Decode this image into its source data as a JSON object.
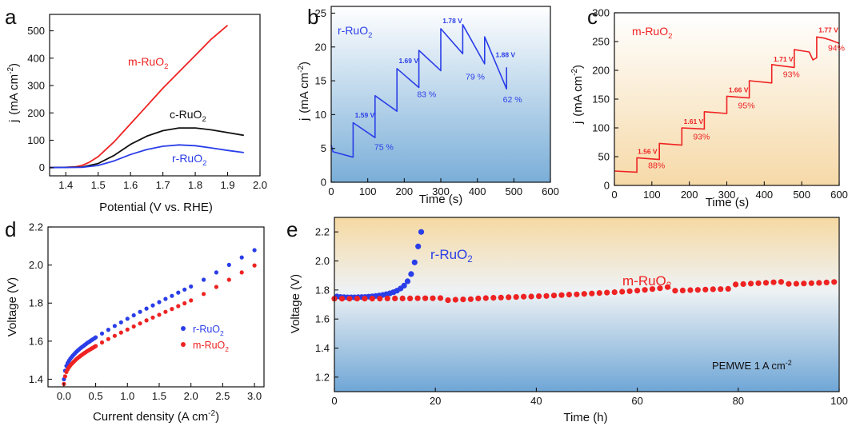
{
  "panels": {
    "a": {
      "label": "a",
      "xlabel": "Potential (V vs. RHE)",
      "ylabel_main": "j",
      "ylabel_unit": "(mA cm",
      "ylabel_sup": "-2",
      "ylabel_close": ")"
    },
    "b": {
      "label": "b",
      "xlabel": "Time (s)",
      "ylabel_main": "j",
      "ylabel_unit": "(mA cm",
      "ylabel_sup": "-2",
      "ylabel_close": ")"
    },
    "c": {
      "label": "c",
      "xlabel": "Time (s)",
      "ylabel_main": "j",
      "ylabel_unit": "(mA cm",
      "ylabel_sup": "-2",
      "ylabel_close": ")"
    },
    "d": {
      "label": "d",
      "xlabel_main": "Current density (A cm",
      "xlabel_sup": "-2",
      "xlabel_close": ")",
      "ylabel": "Voltage (V)"
    },
    "e": {
      "label": "e",
      "xlabel": "Time (h)",
      "ylabel": "Voltage (V)",
      "annotation_main": "PEMWE 1 A cm",
      "annotation_sup": "-2"
    }
  },
  "colors": {
    "red": "#ee2222",
    "blue": "#2a3ee8",
    "black": "#111111"
  },
  "chart_data": [
    {
      "panel": "a",
      "type": "line",
      "xlim": [
        1.35,
        2.0
      ],
      "ylim": [
        -30,
        560
      ],
      "xticks": [
        1.4,
        1.5,
        1.6,
        1.7,
        1.8,
        1.9,
        2.0
      ],
      "xticklabels": [
        "1.4",
        "1.5",
        "1.6",
        "1.7",
        "1.8",
        "1.9",
        "2.0"
      ],
      "yticks": [
        0,
        100,
        200,
        300,
        400,
        500
      ],
      "yticklabels": [
        "0",
        "100",
        "200",
        "300",
        "400",
        "500"
      ],
      "series": [
        {
          "name": "m-RuO",
          "sub": "2",
          "color": "#ee2222",
          "x": [
            1.35,
            1.4,
            1.43,
            1.45,
            1.47,
            1.5,
            1.55,
            1.6,
            1.65,
            1.7,
            1.75,
            1.8,
            1.85,
            1.9
          ],
          "y": [
            0,
            1,
            3,
            8,
            18,
            40,
            95,
            160,
            225,
            290,
            350,
            410,
            470,
            520
          ]
        },
        {
          "name": "c-RuO",
          "sub": "2",
          "color": "#111111",
          "x": [
            1.35,
            1.45,
            1.5,
            1.55,
            1.6,
            1.65,
            1.7,
            1.75,
            1.8,
            1.85,
            1.9,
            1.95
          ],
          "y": [
            0,
            2,
            15,
            45,
            85,
            115,
            135,
            145,
            145,
            138,
            128,
            118
          ]
        },
        {
          "name": "r-RuO",
          "sub": "2",
          "color": "#2a3ee8",
          "x": [
            1.35,
            1.45,
            1.5,
            1.55,
            1.6,
            1.65,
            1.7,
            1.75,
            1.8,
            1.85,
            1.9,
            1.95
          ],
          "y": [
            0,
            1,
            8,
            25,
            48,
            66,
            78,
            83,
            80,
            72,
            63,
            55
          ]
        }
      ]
    },
    {
      "panel": "b",
      "type": "line",
      "xlim": [
        0,
        600
      ],
      "ylim": [
        0,
        26
      ],
      "xticks": [
        0,
        100,
        200,
        300,
        400,
        500,
        600
      ],
      "xticklabels": [
        "0",
        "100",
        "200",
        "300",
        "400",
        "500",
        "600"
      ],
      "yticks": [
        0,
        5,
        10,
        15,
        20,
        25
      ],
      "yticklabels": [
        "0",
        "5",
        "10",
        "15",
        "20",
        "25"
      ],
      "series": [
        {
          "name": "r-RuO",
          "sub": "2",
          "color": "#2a3ee8",
          "x": [
            0,
            5,
            60,
            60,
            120,
            120,
            180,
            180,
            240,
            240,
            300,
            300,
            360,
            360,
            420,
            420,
            480,
            480
          ],
          "y": [
            5.5,
            4.5,
            3.7,
            8.8,
            6.6,
            12.8,
            10.5,
            16.8,
            14.0,
            19.5,
            16.5,
            22.7,
            19.0,
            23.3,
            17.5,
            21.5,
            13.8,
            17.0
          ]
        }
      ],
      "potential_labels": [
        {
          "text": "1.59 V",
          "x": 65,
          "y": 9.6
        },
        {
          "text": "1.69 V",
          "x": 185,
          "y": 17.6
        },
        {
          "text": "1.78 V",
          "x": 305,
          "y": 23.5
        },
        {
          "text": "1.88 V",
          "x": 450,
          "y": 18.5
        }
      ],
      "percent_labels": [
        {
          "text": "75 %",
          "x": 118,
          "y": 4.8
        },
        {
          "text": "83 %",
          "x": 235,
          "y": 12.6
        },
        {
          "text": "79 %",
          "x": 368,
          "y": 15.2
        },
        {
          "text": "62 %",
          "x": 470,
          "y": 11.8
        }
      ]
    },
    {
      "panel": "c",
      "type": "line",
      "xlim": [
        0,
        600
      ],
      "ylim": [
        0,
        300
      ],
      "xticks": [
        0,
        100,
        200,
        300,
        400,
        500,
        600
      ],
      "xticklabels": [
        "0",
        "100",
        "200",
        "300",
        "400",
        "500",
        "600"
      ],
      "yticks": [
        0,
        50,
        100,
        150,
        200,
        250,
        300
      ],
      "yticklabels": [
        "0",
        "50",
        "100",
        "150",
        "200",
        "250",
        "300"
      ],
      "series": [
        {
          "name": "m-RuO",
          "sub": "2",
          "color": "#ee2222",
          "x": [
            0,
            60,
            60,
            120,
            120,
            180,
            180,
            240,
            240,
            300,
            300,
            360,
            360,
            420,
            420,
            480,
            480,
            520,
            530,
            540,
            540,
            560,
            580,
            600
          ],
          "y": [
            25,
            23,
            48,
            45,
            73,
            70,
            100,
            98,
            128,
            125,
            155,
            152,
            182,
            178,
            210,
            205,
            236,
            232,
            218,
            222,
            258,
            256,
            252,
            247
          ]
        }
      ],
      "potential_labels": [
        {
          "text": "1.56 V",
          "x": 62,
          "y": 55
        },
        {
          "text": "1.61 V",
          "x": 185,
          "y": 107
        },
        {
          "text": "1.66 V",
          "x": 305,
          "y": 162
        },
        {
          "text": "1.71 V",
          "x": 425,
          "y": 215
        },
        {
          "text": "1.77 V",
          "x": 545,
          "y": 266
        }
      ],
      "percent_labels": [
        {
          "text": "88%",
          "x": 90,
          "y": 30
        },
        {
          "text": "93%",
          "x": 210,
          "y": 80
        },
        {
          "text": "95%",
          "x": 330,
          "y": 134
        },
        {
          "text": "93%",
          "x": 450,
          "y": 188
        },
        {
          "text": "94%",
          "x": 570,
          "y": 234
        }
      ]
    },
    {
      "panel": "d",
      "type": "scatter",
      "xlim": [
        -0.25,
        3.15
      ],
      "ylim": [
        1.36,
        2.2
      ],
      "xticks": [
        0.0,
        0.5,
        1.0,
        1.5,
        2.0,
        2.5,
        3.0
      ],
      "xticklabels": [
        "0.0",
        "0.5",
        "1.0",
        "1.5",
        "2.0",
        "2.5",
        "3.0"
      ],
      "yticks": [
        1.4,
        1.6,
        1.8,
        2.0,
        2.2
      ],
      "yticklabels": [
        "1.4",
        "1.6",
        "1.8",
        "2.0",
        "2.2"
      ],
      "series": [
        {
          "name": "r-RuO",
          "sub": "2",
          "color": "#2a3ee8",
          "x": [
            0.0,
            0.02,
            0.04,
            0.06,
            0.08,
            0.1,
            0.12,
            0.14,
            0.16,
            0.18,
            0.2,
            0.22,
            0.24,
            0.26,
            0.28,
            0.3,
            0.32,
            0.34,
            0.36,
            0.38,
            0.4,
            0.42,
            0.44,
            0.46,
            0.48,
            0.5,
            0.6,
            0.7,
            0.8,
            0.9,
            1.0,
            1.1,
            1.2,
            1.3,
            1.4,
            1.5,
            1.6,
            1.7,
            1.8,
            1.9,
            2.0,
            2.2,
            2.4,
            2.6,
            2.8,
            3.0
          ],
          "y": [
            1.4,
            1.445,
            1.47,
            1.485,
            1.497,
            1.507,
            1.516,
            1.524,
            1.531,
            1.538,
            1.545,
            1.551,
            1.557,
            1.563,
            1.568,
            1.573,
            1.578,
            1.583,
            1.588,
            1.593,
            1.597,
            1.602,
            1.606,
            1.611,
            1.615,
            1.62,
            1.64,
            1.66,
            1.68,
            1.699,
            1.718,
            1.736,
            1.754,
            1.771,
            1.788,
            1.805,
            1.822,
            1.838,
            1.855,
            1.871,
            1.887,
            1.923,
            1.961,
            2.001,
            2.04,
            2.078
          ]
        },
        {
          "name": "m-RuO",
          "sub": "2",
          "color": "#ee2222",
          "x": [
            0.0,
            0.02,
            0.04,
            0.06,
            0.08,
            0.1,
            0.12,
            0.14,
            0.16,
            0.18,
            0.2,
            0.22,
            0.24,
            0.26,
            0.28,
            0.3,
            0.32,
            0.34,
            0.36,
            0.38,
            0.4,
            0.42,
            0.44,
            0.46,
            0.48,
            0.5,
            0.6,
            0.7,
            0.8,
            0.9,
            1.0,
            1.1,
            1.2,
            1.3,
            1.4,
            1.5,
            1.6,
            1.7,
            1.8,
            1.9,
            2.0,
            2.2,
            2.4,
            2.6,
            2.8,
            3.0
          ],
          "y": [
            1.375,
            1.415,
            1.438,
            1.452,
            1.463,
            1.472,
            1.48,
            1.487,
            1.494,
            1.5,
            1.506,
            1.512,
            1.517,
            1.522,
            1.527,
            1.532,
            1.537,
            1.541,
            1.546,
            1.55,
            1.554,
            1.558,
            1.562,
            1.566,
            1.57,
            1.574,
            1.593,
            1.611,
            1.628,
            1.645,
            1.661,
            1.677,
            1.693,
            1.709,
            1.724,
            1.739,
            1.754,
            1.769,
            1.784,
            1.799,
            1.814,
            1.848,
            1.885,
            1.923,
            1.961,
            1.998
          ]
        }
      ]
    },
    {
      "panel": "e",
      "type": "scatter",
      "xlim": [
        0,
        100
      ],
      "ylim": [
        1.1,
        2.3
      ],
      "xticks": [
        0,
        20,
        40,
        60,
        80,
        100
      ],
      "xticklabels": [
        "0",
        "20",
        "40",
        "60",
        "80",
        "100"
      ],
      "yticks": [
        1.2,
        1.4,
        1.6,
        1.8,
        2.0,
        2.2
      ],
      "yticklabels": [
        "1.2",
        "1.4",
        "1.6",
        "1.8",
        "2.0",
        "2.2"
      ],
      "series": [
        {
          "name": "r-RuO",
          "sub": "2",
          "color": "#2a3ee8",
          "x": [
            0.5,
            1.2,
            1.9,
            2.6,
            3.3,
            4.0,
            4.7,
            5.4,
            6.1,
            6.8,
            7.5,
            8.2,
            8.9,
            9.6,
            10.3,
            11.0,
            11.7,
            12.4,
            13.1,
            13.8,
            14.5,
            15.2,
            15.9,
            16.6,
            17.2
          ],
          "y": [
            1.755,
            1.752,
            1.75,
            1.749,
            1.749,
            1.749,
            1.75,
            1.751,
            1.752,
            1.754,
            1.756,
            1.759,
            1.762,
            1.766,
            1.771,
            1.777,
            1.785,
            1.795,
            1.81,
            1.83,
            1.86,
            1.91,
            1.99,
            2.1,
            2.2
          ]
        },
        {
          "name": "m-RuO",
          "sub": "2",
          "color": "#ee2222",
          "x": [
            0,
            1.5,
            3,
            4.5,
            6,
            7.5,
            9,
            10.5,
            12,
            13.5,
            15,
            16.5,
            18,
            19.5,
            21,
            22.5,
            24,
            25.5,
            27,
            28.5,
            30,
            31.5,
            33,
            34.5,
            36,
            37.5,
            39,
            40.5,
            42,
            43.5,
            45,
            46.5,
            48,
            49.5,
            51,
            52.5,
            54,
            55.5,
            57,
            58.5,
            60,
            61.5,
            63,
            64.5,
            66,
            67.5,
            69,
            70.5,
            72,
            73.5,
            75,
            76.5,
            78,
            79.5,
            81,
            82.5,
            84,
            85.5,
            87,
            88.5,
            90,
            91.5,
            93,
            94.5,
            96,
            97.5,
            99
          ],
          "y": [
            1.74,
            1.74,
            1.74,
            1.741,
            1.741,
            1.741,
            1.741,
            1.742,
            1.742,
            1.742,
            1.742,
            1.743,
            1.743,
            1.743,
            1.744,
            1.73,
            1.733,
            1.735,
            1.737,
            1.742,
            1.744,
            1.746,
            1.748,
            1.75,
            1.752,
            1.754,
            1.755,
            1.757,
            1.759,
            1.762,
            1.765,
            1.768,
            1.77,
            1.773,
            1.776,
            1.779,
            1.782,
            1.785,
            1.788,
            1.792,
            1.796,
            1.801,
            1.806,
            1.812,
            1.82,
            1.795,
            1.797,
            1.799,
            1.801,
            1.803,
            1.805,
            1.806,
            1.808,
            1.838,
            1.841,
            1.844,
            1.847,
            1.85,
            1.853,
            1.856,
            1.842,
            1.843,
            1.845,
            1.847,
            1.849,
            1.852,
            1.855
          ]
        }
      ]
    }
  ]
}
